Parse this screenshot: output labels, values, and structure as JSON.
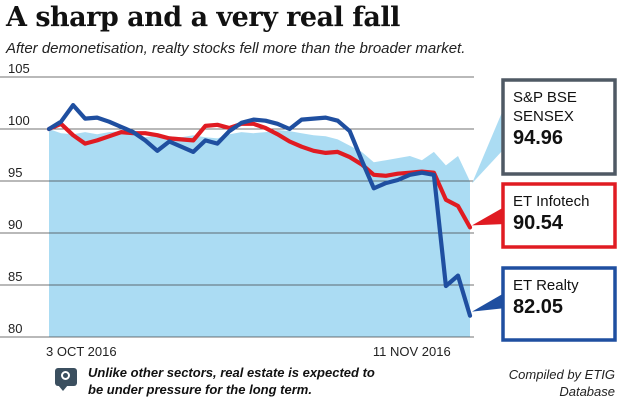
{
  "title": "A sharp and a very real fall",
  "subtitle": "After demonetisation, realty stocks fell more than the broader market.",
  "footnote_line1": "Unlike other sectors, real estate is expected to",
  "footnote_line2": "be under pressure for the long term.",
  "source_line1": "Compiled by ETIG",
  "source_line2": "Database",
  "colors": {
    "sensex_fill": "#abdcf3",
    "sensex_box": "#4f5964",
    "infotech": "#e01b22",
    "realty": "#1f4fa0",
    "grid": "#444444"
  },
  "chart_data": {
    "type": "line",
    "title": "A sharp and a very real fall",
    "subtitle": "After demonetisation, realty stocks fell more than the broader market.",
    "xlabel": "",
    "ylabel": "",
    "ylim": [
      80,
      105
    ],
    "yticks": [
      80,
      85,
      90,
      95,
      100,
      105
    ],
    "xticks": [
      {
        "i": 0,
        "label": "3 OCT 2016"
      },
      {
        "i": 29,
        "label": "11 NOV 2016"
      }
    ],
    "grid": true,
    "series": [
      {
        "name": "S&P BSE SENSEX",
        "label_lines": [
          "S&P BSE",
          "SENSEX"
        ],
        "last_label": "94.96",
        "style": "area",
        "values": [
          100.0,
          99.6,
          99.5,
          99.7,
          99.5,
          99.7,
          99.8,
          99.6,
          99.2,
          99.4,
          99.3,
          99.2,
          99.4,
          99.2,
          99.1,
          99.5,
          99.7,
          99.6,
          99.7,
          99.9,
          99.8,
          99.6,
          99.4,
          99.3,
          99.0,
          98.4,
          97.8,
          96.8,
          97.0,
          97.2,
          97.4,
          97.0,
          97.8,
          96.5,
          97.4,
          94.96
        ]
      },
      {
        "name": "ET Infotech",
        "label_lines": [
          "ET Infotech"
        ],
        "last_label": "90.54",
        "style": "line",
        "values": [
          100.0,
          100.5,
          99.4,
          98.6,
          98.9,
          99.3,
          99.7,
          99.6,
          99.6,
          99.4,
          99.1,
          99.0,
          98.9,
          100.3,
          100.4,
          100.1,
          100.5,
          100.5,
          100.1,
          99.5,
          98.8,
          98.3,
          97.9,
          97.7,
          97.8,
          97.3,
          96.6,
          95.6,
          95.5,
          95.7,
          95.8,
          95.9,
          95.8,
          93.2,
          92.6,
          90.54
        ]
      },
      {
        "name": "ET Realty",
        "label_lines": [
          "ET Realty"
        ],
        "last_label": "82.05",
        "style": "line",
        "values": [
          100.0,
          100.7,
          102.3,
          101.0,
          101.1,
          100.7,
          100.2,
          99.7,
          98.9,
          97.9,
          98.8,
          98.3,
          97.8,
          98.9,
          98.6,
          99.8,
          100.6,
          100.9,
          100.8,
          100.5,
          100.0,
          100.9,
          101.0,
          101.1,
          100.8,
          99.8,
          97.0,
          94.3,
          94.8,
          95.1,
          95.6,
          95.8,
          95.6,
          84.9,
          85.9,
          82.05
        ]
      }
    ]
  }
}
